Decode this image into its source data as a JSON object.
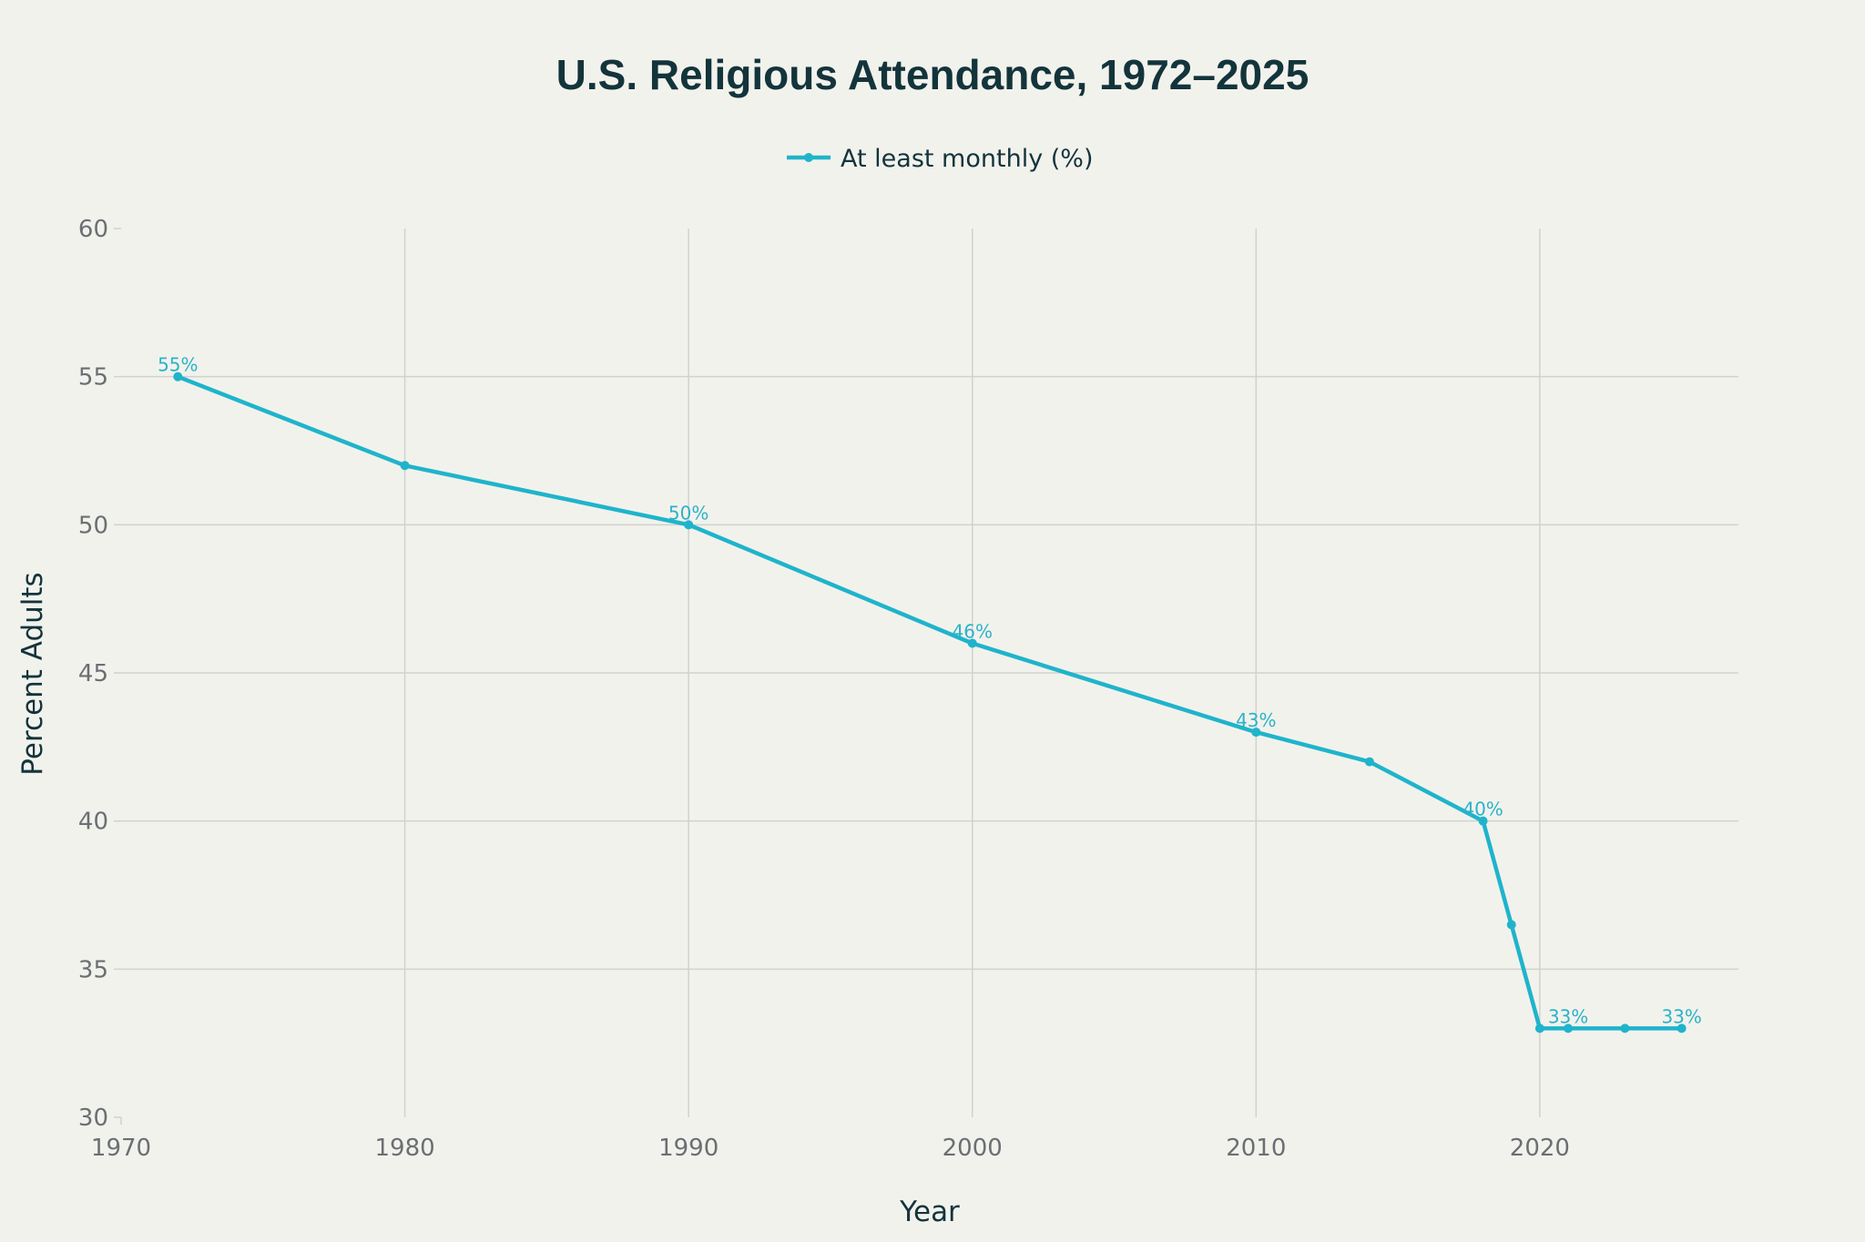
{
  "chart_data": {
    "type": "line",
    "title": "U.S. Religious Attendance, 1972–2025",
    "xlabel": "Year",
    "ylabel": "Percent Adults",
    "xlim": [
      1970,
      2027
    ],
    "ylim": [
      30,
      60
    ],
    "xticks": [
      1970,
      1980,
      1990,
      2000,
      2010,
      2020
    ],
    "yticks": [
      30,
      35,
      40,
      45,
      50,
      55,
      60
    ],
    "grid": true,
    "legend_position": "top-center",
    "series": [
      {
        "name": "At least monthly (%)",
        "color": "#1fb4cb",
        "x": [
          1972,
          1980,
          1990,
          2000,
          2010,
          2014,
          2018,
          2019,
          2020,
          2021,
          2023,
          2025
        ],
        "values": [
          55,
          52,
          50,
          46,
          43,
          42,
          40,
          36.5,
          33,
          33,
          33,
          33
        ]
      }
    ],
    "data_labels": [
      {
        "x": 1972,
        "y": 55,
        "text": "55%"
      },
      {
        "x": 1990,
        "y": 50,
        "text": "50%"
      },
      {
        "x": 2000,
        "y": 46,
        "text": "46%"
      },
      {
        "x": 2010,
        "y": 43,
        "text": "43%"
      },
      {
        "x": 2018,
        "y": 40,
        "text": "40%"
      },
      {
        "x": 2021,
        "y": 33,
        "text": "33%"
      },
      {
        "x": 2025,
        "y": 33,
        "text": "33%"
      }
    ]
  }
}
